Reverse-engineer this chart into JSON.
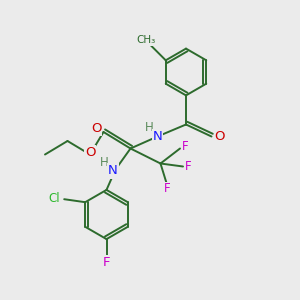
{
  "bg_color": "#ebebeb",
  "bond_color": "#2d6b2d",
  "bond_lw": 1.4,
  "atom_colors": {
    "O": "#cc0000",
    "N": "#1a1aff",
    "F": "#cc00cc",
    "Cl": "#2db82d",
    "H": "#5a8a5a",
    "C": "#2d6b2d"
  },
  "font_size": 8.5,
  "fig_size": [
    3.0,
    3.0
  ],
  "dpi": 100
}
